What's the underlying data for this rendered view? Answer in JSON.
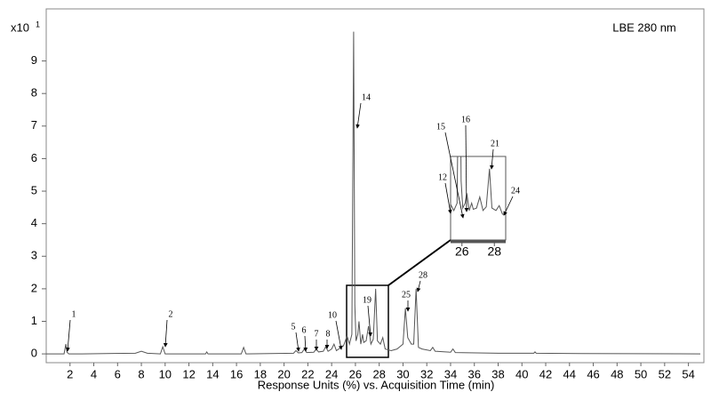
{
  "chart_data": {
    "type": "line",
    "title": "LBE 280 nm",
    "x_label": "Response Units (%) vs. Acquisition Time (min)",
    "y_multiplier": {
      "base": "x10",
      "exponent": "1"
    },
    "xlim": [
      0,
      55.3
    ],
    "ylim": [
      -0.27,
      10.6
    ],
    "xticks": [
      2,
      4,
      6,
      8,
      10,
      12,
      14,
      16,
      18,
      20,
      22,
      24,
      26,
      28,
      30,
      32,
      34,
      36,
      38,
      40,
      42,
      44,
      46,
      48,
      50,
      52,
      54
    ],
    "yticks": [
      0,
      1,
      2,
      3,
      4,
      5,
      6,
      7,
      8,
      9
    ],
    "color": "#555555",
    "x": [
      0,
      1.5,
      1.65,
      1.75,
      1.9,
      3,
      7.5,
      8,
      8.5,
      9.6,
      9.8,
      10,
      12,
      13.4,
      13.5,
      13.6,
      16.4,
      16.6,
      16.8,
      20.8,
      21,
      21.2,
      21.5,
      21.7,
      21.9,
      22.5,
      22.7,
      22.9,
      23.3,
      23.5,
      23.7,
      24,
      24.2,
      24.4,
      25,
      25.3,
      25.5,
      25.7,
      25.85,
      25.95,
      26.05,
      26.2,
      26.3,
      26.45,
      26.6,
      26.7,
      26.9,
      27.1,
      27.3,
      27.5,
      27.7,
      27.85,
      28.1,
      28.3,
      28.5,
      29,
      29.5,
      30,
      30.2,
      30.4,
      30.7,
      30.9,
      31.1,
      31.3,
      31.6,
      32.3,
      32.5,
      32.7,
      34,
      34.2,
      34.4,
      38,
      41,
      41.1,
      41.2,
      45,
      55
    ],
    "values": [
      0,
      0,
      0.3,
      0.05,
      0,
      0,
      0.02,
      0.08,
      0.02,
      0,
      0.22,
      0,
      0,
      0,
      0.06,
      0,
      0,
      0.2,
      0,
      0.02,
      0.1,
      0.03,
      0.04,
      0.15,
      0.04,
      0.05,
      0.15,
      0.06,
      0.08,
      0.22,
      0.08,
      0.15,
      0.3,
      0.1,
      0.25,
      0.55,
      0.3,
      0.6,
      9.9,
      1.5,
      0.4,
      0.6,
      1.0,
      0.3,
      0.6,
      0.35,
      0.4,
      0.85,
      0.3,
      0.45,
      2.0,
      0.4,
      0.3,
      0.5,
      0.15,
      0.1,
      0.15,
      0.3,
      1.4,
      0.5,
      0.3,
      0.3,
      2.0,
      0.2,
      0.15,
      0.1,
      0.2,
      0.08,
      0.05,
      0.15,
      0.04,
      0.02,
      0.02,
      0.06,
      0.02,
      0.01,
      0
    ],
    "peak_labels": [
      "1",
      "2",
      "5",
      "6",
      "7",
      "8",
      "10",
      "14",
      "19",
      "25",
      "28"
    ],
    "inset": {
      "xlim": [
        25.3,
        28.7
      ],
      "ylim": [
        -0.9,
        2.5
      ],
      "xticks": [
        26,
        28
      ],
      "peak_labels": [
        "12",
        "15",
        "16",
        "21",
        "24"
      ]
    }
  }
}
